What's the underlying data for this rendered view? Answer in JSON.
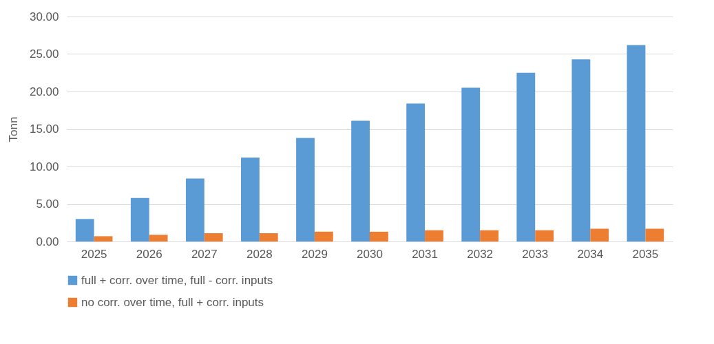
{
  "chart_data": {
    "type": "bar",
    "ylabel": "Tonn",
    "categories": [
      "2025",
      "2026",
      "2027",
      "2028",
      "2029",
      "2030",
      "2031",
      "2032",
      "2033",
      "2034",
      "2035"
    ],
    "series": [
      {
        "name": "full + corr. over time, full - corr. inputs",
        "color": "#5b9bd5",
        "values": [
          3.0,
          5.8,
          8.4,
          11.2,
          13.8,
          16.1,
          18.4,
          20.5,
          22.5,
          24.3,
          26.2
        ]
      },
      {
        "name": "no corr. over time, full + corr. inputs",
        "color": "#ed7d31",
        "values": [
          0.7,
          0.9,
          1.1,
          1.1,
          1.3,
          1.3,
          1.5,
          1.5,
          1.5,
          1.7,
          1.7
        ]
      }
    ],
    "ylim": [
      0,
      30
    ],
    "yticks": [
      {
        "value": 0,
        "label": "0.00"
      },
      {
        "value": 5,
        "label": "5.00"
      },
      {
        "value": 10,
        "label": "10.00"
      },
      {
        "value": 15,
        "label": "15.00"
      },
      {
        "value": 20,
        "label": "20.00"
      },
      {
        "value": 25,
        "label": "25.00"
      },
      {
        "value": 30,
        "label": "30.00"
      }
    ],
    "grid": "y",
    "legend": "bottom"
  }
}
